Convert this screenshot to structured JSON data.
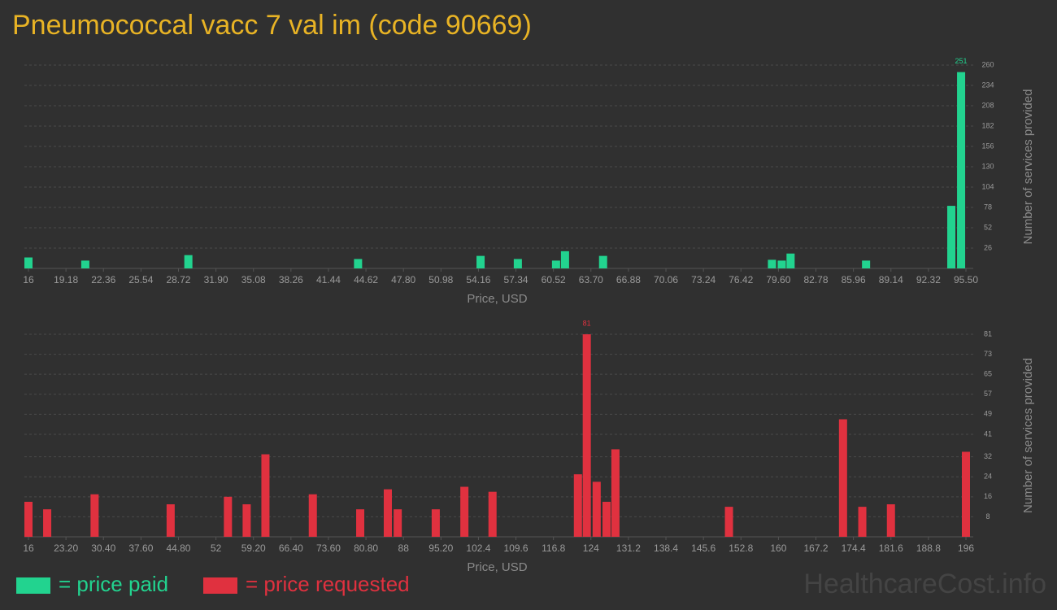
{
  "title": "Pneumococcal vacc 7 val im (code 90669)",
  "watermark": "HealthcareCost.info",
  "chart_data": [
    {
      "type": "bar",
      "xlabel": "Price, USD",
      "ylabel": "Number of services provided",
      "x": [
        16,
        20.82,
        29.56,
        43.95,
        54.34,
        57.5,
        60.74,
        61.5,
        64.73,
        79.05,
        79.88,
        80.63,
        87.03,
        94.26,
        95.09
      ],
      "series": [
        {
          "name": "= price paid",
          "color": "#22d38f",
          "values": [
            14,
            10,
            17,
            12,
            16,
            12,
            10,
            22,
            16,
            11,
            10,
            19,
            10,
            80,
            251
          ]
        }
      ],
      "xlim": [
        16,
        95.5
      ],
      "xticks": [
        16,
        19.18,
        22.36,
        25.54,
        28.72,
        {
          "value": 31.9,
          "label": "31.90"
        },
        35.08,
        38.26,
        41.44,
        44.62,
        {
          "value": 47.8,
          "label": "47.80"
        },
        50.98,
        54.16,
        57.34,
        60.52,
        {
          "value": 63.7,
          "label": "63.70"
        },
        66.88,
        70.06,
        73.24,
        76.42,
        {
          "value": 79.6,
          "label": "79.60"
        },
        82.78,
        85.96,
        89.14,
        92.32,
        {
          "value": 95.5,
          "label": "95.50"
        }
      ],
      "ylim": [
        0,
        260
      ],
      "yticks": [
        26,
        52,
        78,
        104,
        130,
        156,
        182,
        208,
        234,
        260
      ],
      "grid": true
    },
    {
      "type": "bar",
      "xlabel": "Price, USD",
      "ylabel": "Number of services provided",
      "x": [
        16,
        19.6,
        28.7,
        43.3,
        54.3,
        57.9,
        61.5,
        70.6,
        79.7,
        85,
        86.9,
        94.2,
        99.7,
        105.1,
        121.5,
        123.2,
        125.1,
        127,
        128.7,
        150.5,
        172.4,
        176.1,
        181.6,
        196
      ],
      "series": [
        {
          "name": "= price requested",
          "color": "#e0313f",
          "values": [
            14,
            11,
            17,
            13,
            16,
            13,
            33,
            17,
            11,
            19,
            11,
            11,
            20,
            18,
            25,
            81,
            22,
            14,
            35,
            12,
            47,
            12,
            13,
            34
          ]
        }
      ],
      "xlim": [
        16,
        196
      ],
      "xticks": [
        16,
        {
          "value": 23.2,
          "label": "23.20"
        },
        {
          "value": 30.4,
          "label": "30.40"
        },
        {
          "value": 37.6,
          "label": "37.60"
        },
        {
          "value": 44.8,
          "label": "44.80"
        },
        52,
        {
          "value": 59.2,
          "label": "59.20"
        },
        {
          "value": 66.4,
          "label": "66.40"
        },
        {
          "value": 73.6,
          "label": "73.60"
        },
        {
          "value": 80.8,
          "label": "80.80"
        },
        88,
        {
          "value": 95.2,
          "label": "95.20"
        },
        102.4,
        109.6,
        116.8,
        124,
        131.2,
        138.4,
        145.6,
        152.8,
        160,
        167.2,
        174.4,
        181.6,
        188.8,
        196
      ],
      "ylim": [
        0,
        81
      ],
      "yticks": [
        8,
        16,
        24,
        32,
        41,
        49,
        57,
        65,
        73,
        81
      ],
      "grid": true
    }
  ]
}
